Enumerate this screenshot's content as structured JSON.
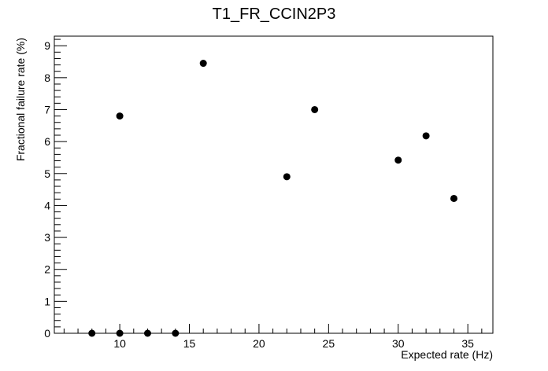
{
  "chart_data": {
    "type": "scatter",
    "title": "T1_FR_CCIN2P3",
    "xlabel": "Expected rate (Hz)",
    "ylabel": "Fractional failure rate (%)",
    "xlim": [
      5.3,
      36.8
    ],
    "ylim": [
      0,
      9.3
    ],
    "xticks": [
      10,
      15,
      20,
      25,
      30,
      35
    ],
    "yticks": [
      0,
      1,
      2,
      3,
      4,
      5,
      6,
      7,
      8,
      9
    ],
    "grid": false,
    "marker_color": "#000000",
    "points": [
      {
        "x": 8,
        "y": 0
      },
      {
        "x": 10,
        "y": 6.8
      },
      {
        "x": 10,
        "y": 0
      },
      {
        "x": 12,
        "y": 0
      },
      {
        "x": 14,
        "y": 0
      },
      {
        "x": 16,
        "y": 8.45
      },
      {
        "x": 22,
        "y": 4.9
      },
      {
        "x": 24,
        "y": 7.0
      },
      {
        "x": 30,
        "y": 5.42
      },
      {
        "x": 32,
        "y": 6.18
      },
      {
        "x": 34,
        "y": 4.22
      }
    ]
  }
}
